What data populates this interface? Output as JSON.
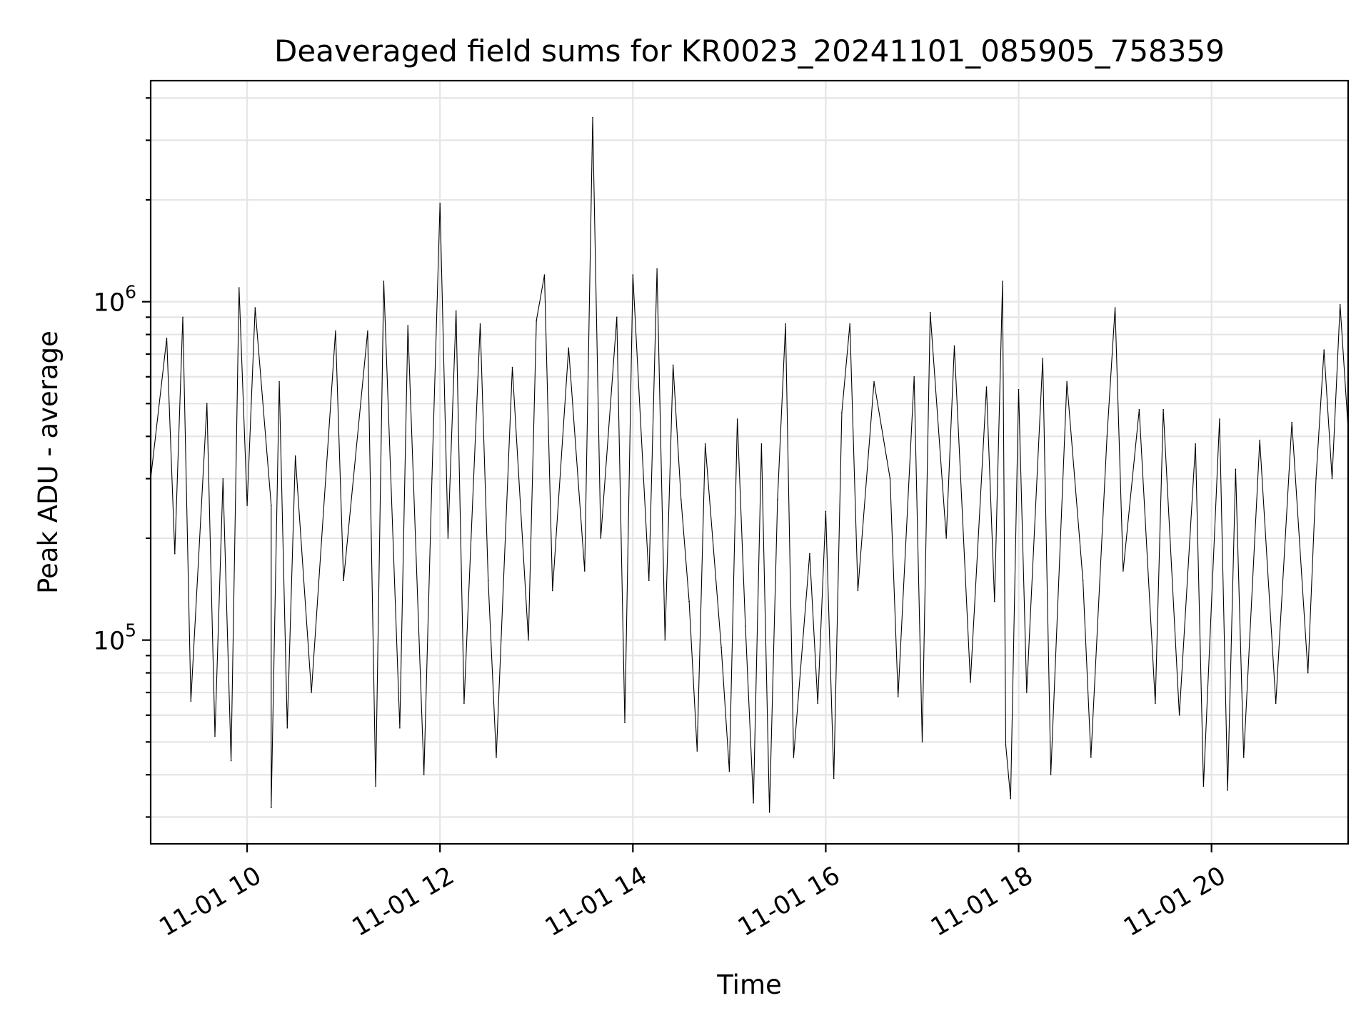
{
  "chart_data": {
    "type": "line",
    "title": "Deaveraged field sums for KR0023_20241101_085905_758359",
    "xlabel": "Time",
    "ylabel": "Peak ADU - average",
    "x_axis": {
      "scale": "time",
      "range": [
        "2024-11-01 09:00",
        "2024-11-01 21:25"
      ],
      "ticks": [
        {
          "time": "2024-11-01 10:00",
          "label": "11-01 10"
        },
        {
          "time": "2024-11-01 12:00",
          "label": "11-01 12"
        },
        {
          "time": "2024-11-01 14:00",
          "label": "11-01 14"
        },
        {
          "time": "2024-11-01 16:00",
          "label": "11-01 16"
        },
        {
          "time": "2024-11-01 18:00",
          "label": "11-01 18"
        },
        {
          "time": "2024-11-01 20:00",
          "label": "11-01 20"
        }
      ]
    },
    "y_axis": {
      "scale": "log",
      "range": [
        25000,
        4500000
      ],
      "major_ticks": [
        {
          "value": 100000,
          "base": "10",
          "exponent": "5"
        },
        {
          "value": 1000000,
          "base": "10",
          "exponent": "6"
        }
      ],
      "minor_ticks": [
        30000,
        40000,
        50000,
        60000,
        70000,
        80000,
        90000,
        200000,
        300000,
        400000,
        500000,
        600000,
        700000,
        800000,
        900000,
        2000000,
        3000000,
        4000000
      ]
    },
    "grid": true,
    "legend": "none",
    "series": [
      {
        "color": "#000000",
        "points": [
          [
            "2024-11-01 09:00",
            300000
          ],
          [
            "2024-11-01 09:10",
            780000
          ],
          [
            "2024-11-01 09:15",
            180000
          ],
          [
            "2024-11-01 09:20",
            900000
          ],
          [
            "2024-11-01 09:25",
            66000
          ],
          [
            "2024-11-01 09:35",
            500000
          ],
          [
            "2024-11-01 09:40",
            52000
          ],
          [
            "2024-11-01 09:45",
            300000
          ],
          [
            "2024-11-01 09:50",
            44000
          ],
          [
            "2024-11-01 09:55",
            1100000
          ],
          [
            "2024-11-01 10:00",
            250000
          ],
          [
            "2024-11-01 10:05",
            960000
          ],
          [
            "2024-11-01 10:15",
            250000
          ],
          [
            "2024-11-01 10:15",
            32000
          ],
          [
            "2024-11-01 10:20",
            580000
          ],
          [
            "2024-11-01 10:25",
            55000
          ],
          [
            "2024-11-01 10:30",
            350000
          ],
          [
            "2024-11-01 10:40",
            70000
          ],
          [
            "2024-11-01 10:55",
            820000
          ],
          [
            "2024-11-01 11:00",
            150000
          ],
          [
            "2024-11-01 11:15",
            820000
          ],
          [
            "2024-11-01 11:20",
            37000
          ],
          [
            "2024-11-01 11:25",
            1150000
          ],
          [
            "2024-11-01 11:35",
            55000
          ],
          [
            "2024-11-01 11:40",
            850000
          ],
          [
            "2024-11-01 11:50",
            40000
          ],
          [
            "2024-11-01 11:55",
            300000
          ],
          [
            "2024-11-01 12:00",
            1950000
          ],
          [
            "2024-11-01 12:05",
            200000
          ],
          [
            "2024-11-01 12:10",
            940000
          ],
          [
            "2024-11-01 12:15",
            65000
          ],
          [
            "2024-11-01 12:25",
            860000
          ],
          [
            "2024-11-01 12:30",
            150000
          ],
          [
            "2024-11-01 12:35",
            45000
          ],
          [
            "2024-11-01 12:45",
            640000
          ],
          [
            "2024-11-01 12:55",
            100000
          ],
          [
            "2024-11-01 13:00",
            880000
          ],
          [
            "2024-11-01 13:05",
            1200000
          ],
          [
            "2024-11-01 13:10",
            140000
          ],
          [
            "2024-11-01 13:20",
            730000
          ],
          [
            "2024-11-01 13:30",
            160000
          ],
          [
            "2024-11-01 13:35",
            3500000
          ],
          [
            "2024-11-01 13:40",
            200000
          ],
          [
            "2024-11-01 13:50",
            900000
          ],
          [
            "2024-11-01 13:55",
            57000
          ],
          [
            "2024-11-01 14:00",
            1200000
          ],
          [
            "2024-11-01 14:10",
            150000
          ],
          [
            "2024-11-01 14:15",
            1250000
          ],
          [
            "2024-11-01 14:20",
            100000
          ],
          [
            "2024-11-01 14:25",
            650000
          ],
          [
            "2024-11-01 14:30",
            260000
          ],
          [
            "2024-11-01 14:35",
            130000
          ],
          [
            "2024-11-01 14:40",
            47000
          ],
          [
            "2024-11-01 14:45",
            380000
          ],
          [
            "2024-11-01 14:55",
            95000
          ],
          [
            "2024-11-01 15:00",
            41000
          ],
          [
            "2024-11-01 15:05",
            450000
          ],
          [
            "2024-11-01 15:10",
            110000
          ],
          [
            "2024-11-01 15:15",
            33000
          ],
          [
            "2024-11-01 15:20",
            380000
          ],
          [
            "2024-11-01 15:25",
            31000
          ],
          [
            "2024-11-01 15:30",
            260000
          ],
          [
            "2024-11-01 15:35",
            860000
          ],
          [
            "2024-11-01 15:40",
            45000
          ],
          [
            "2024-11-01 15:50",
            180000
          ],
          [
            "2024-11-01 15:55",
            65000
          ],
          [
            "2024-11-01 16:00",
            240000
          ],
          [
            "2024-11-01 16:05",
            39000
          ],
          [
            "2024-11-01 16:10",
            470000
          ],
          [
            "2024-11-01 16:15",
            860000
          ],
          [
            "2024-11-01 16:20",
            140000
          ],
          [
            "2024-11-01 16:30",
            580000
          ],
          [
            "2024-11-01 16:40",
            300000
          ],
          [
            "2024-11-01 16:45",
            68000
          ],
          [
            "2024-11-01 16:55",
            600000
          ],
          [
            "2024-11-01 17:00",
            50000
          ],
          [
            "2024-11-01 17:05",
            930000
          ],
          [
            "2024-11-01 17:15",
            200000
          ],
          [
            "2024-11-01 17:20",
            740000
          ],
          [
            "2024-11-01 17:30",
            75000
          ],
          [
            "2024-11-01 17:40",
            560000
          ],
          [
            "2024-11-01 17:45",
            130000
          ],
          [
            "2024-11-01 17:50",
            1150000
          ],
          [
            "2024-11-01 17:52",
            49000
          ],
          [
            "2024-11-01 17:55",
            34000
          ],
          [
            "2024-11-01 18:00",
            550000
          ],
          [
            "2024-11-01 18:05",
            70000
          ],
          [
            "2024-11-01 18:15",
            680000
          ],
          [
            "2024-11-01 18:20",
            40000
          ],
          [
            "2024-11-01 18:30",
            580000
          ],
          [
            "2024-11-01 18:40",
            150000
          ],
          [
            "2024-11-01 18:45",
            45000
          ],
          [
            "2024-11-01 18:55",
            400000
          ],
          [
            "2024-11-01 19:00",
            960000
          ],
          [
            "2024-11-01 19:05",
            160000
          ],
          [
            "2024-11-01 19:15",
            480000
          ],
          [
            "2024-11-01 19:25",
            65000
          ],
          [
            "2024-11-01 19:30",
            480000
          ],
          [
            "2024-11-01 19:40",
            60000
          ],
          [
            "2024-11-01 19:50",
            380000
          ],
          [
            "2024-11-01 19:55",
            37000
          ],
          [
            "2024-11-01 20:05",
            450000
          ],
          [
            "2024-11-01 20:10",
            36000
          ],
          [
            "2024-11-01 20:15",
            320000
          ],
          [
            "2024-11-01 20:20",
            45000
          ],
          [
            "2024-11-01 20:30",
            390000
          ],
          [
            "2024-11-01 20:40",
            65000
          ],
          [
            "2024-11-01 20:50",
            440000
          ],
          [
            "2024-11-01 21:00",
            80000
          ],
          [
            "2024-11-01 21:05",
            300000
          ],
          [
            "2024-11-01 21:10",
            720000
          ],
          [
            "2024-11-01 21:15",
            300000
          ],
          [
            "2024-11-01 21:20",
            980000
          ],
          [
            "2024-11-01 21:25",
            420000
          ]
        ]
      }
    ]
  }
}
